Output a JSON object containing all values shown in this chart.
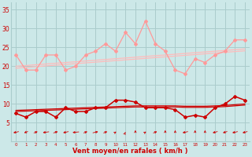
{
  "x": [
    0,
    1,
    2,
    3,
    4,
    5,
    6,
    7,
    8,
    9,
    10,
    11,
    12,
    13,
    14,
    15,
    16,
    17,
    18,
    19,
    20,
    21,
    22,
    23
  ],
  "rafales_line": [
    23,
    19,
    19,
    23,
    23,
    19,
    20,
    23,
    24,
    26,
    24,
    29,
    26,
    32,
    26,
    24,
    19,
    18,
    22,
    21,
    23,
    24,
    27,
    27
  ],
  "trend_rafales1": [
    20.0,
    20.2,
    20.4,
    20.6,
    20.8,
    21.0,
    21.2,
    21.4,
    21.6,
    21.8,
    22.0,
    22.2,
    22.4,
    22.6,
    22.8,
    23.0,
    23.2,
    23.4,
    23.6,
    23.8,
    24.0,
    24.2,
    24.4,
    24.6
  ],
  "trend_rafales2": [
    19.5,
    19.7,
    19.9,
    20.1,
    20.3,
    20.5,
    20.7,
    20.9,
    21.1,
    21.3,
    21.5,
    21.7,
    21.9,
    22.1,
    22.3,
    22.5,
    22.7,
    22.9,
    23.1,
    23.3,
    23.5,
    23.7,
    23.9,
    24.1
  ],
  "moyen_line": [
    7.5,
    6.5,
    8.0,
    8.0,
    6.5,
    9.0,
    8.0,
    8.0,
    9.0,
    9.0,
    11.0,
    11.0,
    10.5,
    9.0,
    9.0,
    9.0,
    8.5,
    6.5,
    7.0,
    6.5,
    9.0,
    10.0,
    12.0,
    11.0
  ],
  "trend_moyen1": [
    8.3,
    8.4,
    8.5,
    8.6,
    8.7,
    8.8,
    8.9,
    9.0,
    9.1,
    9.2,
    9.3,
    9.4,
    9.5,
    9.5,
    9.5,
    9.5,
    9.5,
    9.4,
    9.4,
    9.4,
    9.5,
    9.6,
    9.8,
    10.0
  ],
  "trend_moyen2": [
    8.0,
    8.1,
    8.2,
    8.3,
    8.4,
    8.5,
    8.6,
    8.7,
    8.8,
    8.9,
    9.0,
    9.1,
    9.2,
    9.2,
    9.2,
    9.2,
    9.2,
    9.1,
    9.1,
    9.1,
    9.2,
    9.3,
    9.5,
    9.7
  ],
  "arrow_angles": [
    210,
    225,
    45,
    200,
    40,
    210,
    195,
    45,
    30,
    45,
    60,
    80,
    90,
    60,
    45,
    90,
    90,
    210,
    90,
    90,
    215,
    220,
    210,
    215
  ],
  "xlabel": "Vent moyen/en rafales ( km/h )",
  "bg_color": "#cce8e8",
  "grid_color": "#aacccc",
  "line_color_rafales": "#ff9999",
  "line_color_moyen": "#cc0000",
  "trend_color_light": "#ffbbbb",
  "ylim": [
    0,
    37
  ],
  "yticks": [
    5,
    10,
    15,
    20,
    25,
    30,
    35
  ]
}
